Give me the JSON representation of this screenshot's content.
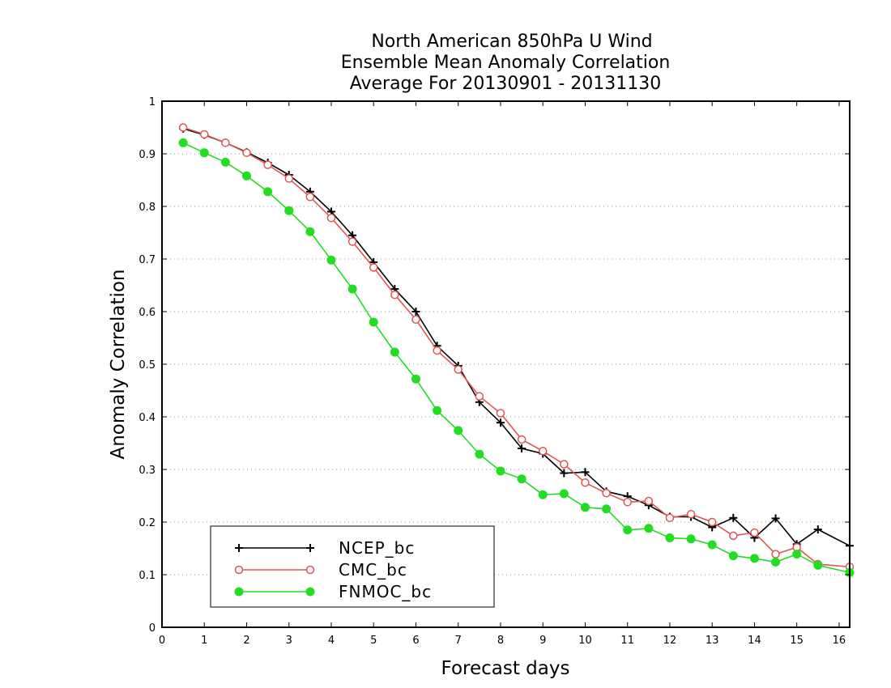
{
  "chart_data": {
    "type": "line",
    "title": [
      "North American 850hPa U Wind",
      "Ensemble Mean Anomaly Correlation",
      "Average For 20130901 - 20131130"
    ],
    "xlabel": "Forecast days",
    "ylabel": "Anomaly Correlation",
    "xlim": [
      0,
      16.25
    ],
    "ylim": [
      0,
      1
    ],
    "x_ticks": [
      0,
      1,
      2,
      3,
      4,
      5,
      6,
      7,
      8,
      9,
      10,
      11,
      12,
      13,
      14,
      15,
      16
    ],
    "y_ticks": [
      0,
      0.1,
      0.2,
      0.3,
      0.4,
      0.5,
      0.6,
      0.7,
      0.8,
      0.9,
      1
    ],
    "y_tick_labels": [
      "0",
      "0.1",
      "0.2",
      "0.3",
      "0.4",
      "0.5",
      "0.6",
      "0.7",
      "0.8",
      "0.9",
      "1"
    ],
    "grid": "horizontal dotted",
    "legend_position": "bottom-left",
    "x": [
      0.5,
      1,
      1.5,
      2,
      2.5,
      3,
      3.5,
      4,
      4.5,
      5,
      5.5,
      6,
      6.5,
      7,
      7.5,
      8,
      8.5,
      9,
      9.5,
      10,
      10.5,
      11,
      11.5,
      12,
      12.5,
      13,
      13.5,
      14,
      14.5,
      15,
      15.5,
      16.25
    ],
    "series": [
      {
        "name": "NCEP_bc",
        "color": "#000000",
        "marker": "plus",
        "values": [
          0.948,
          0.936,
          0.921,
          0.903,
          0.883,
          0.86,
          0.828,
          0.79,
          0.745,
          0.694,
          0.643,
          0.6,
          0.535,
          0.497,
          0.428,
          0.389,
          0.34,
          0.33,
          0.293,
          0.295,
          0.258,
          0.249,
          0.232,
          0.21,
          0.21,
          0.19,
          0.208,
          0.17,
          0.207,
          0.158,
          0.186,
          0.155
        ]
      },
      {
        "name": "CMC_bc",
        "color": "#e05555",
        "marker": "open-circle",
        "values": [
          0.95,
          0.937,
          0.921,
          0.902,
          0.879,
          0.853,
          0.818,
          0.778,
          0.733,
          0.684,
          0.632,
          0.585,
          0.526,
          0.49,
          0.439,
          0.407,
          0.357,
          0.335,
          0.31,
          0.275,
          0.255,
          0.238,
          0.24,
          0.208,
          0.215,
          0.2,
          0.174,
          0.18,
          0.139,
          0.152,
          0.12,
          0.115
        ]
      },
      {
        "name": "FNMOC_bc",
        "color": "#22dd22",
        "marker": "filled-circle",
        "values": [
          0.921,
          0.902,
          0.884,
          0.858,
          0.828,
          0.792,
          0.752,
          0.698,
          0.643,
          0.58,
          0.523,
          0.472,
          0.412,
          0.374,
          0.329,
          0.297,
          0.282,
          0.252,
          0.254,
          0.228,
          0.225,
          0.185,
          0.188,
          0.17,
          0.168,
          0.157,
          0.136,
          0.131,
          0.124,
          0.139,
          0.118,
          0.104
        ]
      }
    ]
  }
}
